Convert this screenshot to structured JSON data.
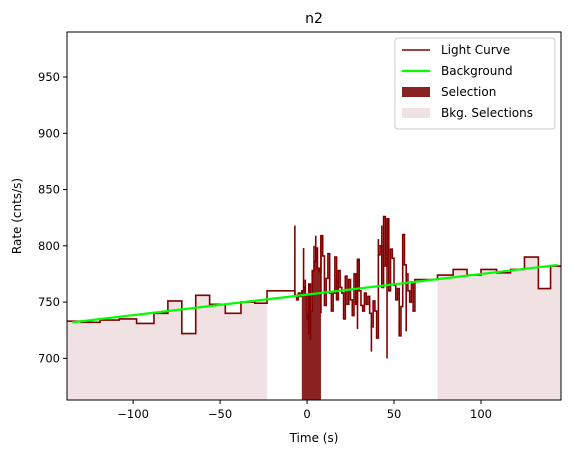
{
  "chart_data": {
    "type": "line",
    "title": "n2",
    "xlabel": "Time (s)",
    "ylabel": "Rate (cnts/s)",
    "xlim": [
      -138,
      146
    ],
    "ylim": [
      663,
      990
    ],
    "x_ticks": [
      -100,
      -50,
      0,
      50,
      100
    ],
    "x_tick_labels": [
      "−100",
      "−50",
      "0",
      "50",
      "100"
    ],
    "y_ticks": [
      700,
      750,
      800,
      850,
      900,
      950
    ],
    "y_tick_labels": [
      "700",
      "750",
      "800",
      "850",
      "900",
      "950"
    ],
    "grid": false,
    "legend_position": "top-right",
    "legend": [
      {
        "label": "Light Curve",
        "kind": "line",
        "color": "#800000"
      },
      {
        "label": "Background",
        "kind": "line",
        "color": "#00ff00"
      },
      {
        "label": "Selection",
        "kind": "patch",
        "color": "#8b2222"
      },
      {
        "label": "Bkg. Selections",
        "kind": "patch",
        "color": "#f0e2e2"
      }
    ],
    "light_curve": {
      "name": "Light Curve",
      "color": "#800000",
      "steps": [
        [
          -138,
          733
        ],
        [
          -130,
          732
        ],
        [
          -119,
          734
        ],
        [
          -108,
          735
        ],
        [
          -98,
          731
        ],
        [
          -88,
          740
        ],
        [
          -80,
          751
        ],
        [
          -72,
          722
        ],
        [
          -64,
          756
        ],
        [
          -56,
          748
        ],
        [
          -47,
          740
        ],
        [
          -38,
          750
        ],
        [
          -30,
          749
        ],
        [
          -23,
          760
        ],
        [
          -8,
          760
        ],
        [
          -7,
          756
        ],
        [
          -6,
          752
        ],
        [
          -5,
          758
        ],
        [
          -4,
          755
        ],
        [
          -3,
          760
        ],
        [
          -2,
          763
        ],
        [
          -1,
          757
        ],
        [
          0,
          735
        ],
        [
          1,
          766
        ],
        [
          2,
          742
        ],
        [
          3,
          778
        ],
        [
          4,
          786
        ],
        [
          5,
          798
        ],
        [
          6,
          780
        ],
        [
          7,
          777
        ],
        [
          8,
          809
        ],
        [
          9,
          791
        ],
        [
          10,
          747
        ],
        [
          11,
          771
        ],
        [
          12,
          793
        ],
        [
          13,
          758
        ],
        [
          14,
          742
        ],
        [
          15,
          758
        ],
        [
          16,
          790
        ],
        [
          17,
          752
        ],
        [
          18,
          778
        ],
        [
          19,
          763
        ],
        [
          20,
          758
        ],
        [
          21,
          735
        ],
        [
          22,
          773
        ],
        [
          23,
          748
        ],
        [
          24,
          770
        ],
        [
          25,
          752
        ],
        [
          26,
          738
        ],
        [
          27,
          775
        ],
        [
          28,
          748
        ],
        [
          29,
          788
        ],
        [
          30,
          760
        ],
        [
          31,
          747
        ],
        [
          32,
          742
        ],
        [
          33,
          758
        ],
        [
          34,
          748
        ],
        [
          35,
          755
        ],
        [
          36,
          740
        ],
        [
          37,
          728
        ],
        [
          38,
          751
        ],
        [
          39,
          742
        ],
        [
          40,
          718
        ],
        [
          41,
          792
        ],
        [
          42,
          800
        ],
        [
          43,
          763
        ],
        [
          44,
          826
        ],
        [
          45,
          782
        ],
        [
          46,
          824
        ],
        [
          47,
          760
        ],
        [
          48,
          797
        ],
        [
          49,
          789
        ],
        [
          50,
          765
        ],
        [
          51,
          752
        ],
        [
          52,
          762
        ],
        [
          53,
          720
        ],
        [
          54,
          746
        ],
        [
          55,
          810
        ],
        [
          56,
          783
        ],
        [
          57,
          775
        ],
        [
          58,
          760
        ],
        [
          59,
          750
        ],
        [
          60,
          768
        ],
        [
          61,
          742
        ],
        [
          62,
          770
        ],
        [
          75,
          774
        ],
        [
          84,
          779
        ],
        [
          92,
          774
        ],
        [
          100,
          779
        ],
        [
          109,
          776
        ],
        [
          117,
          779
        ],
        [
          125,
          790
        ],
        [
          133,
          762
        ],
        [
          140,
          782
        ],
        [
          146,
          782
        ]
      ],
      "lead_in_step": [
        -8,
        760,
        -4,
        757
      ],
      "spikes": [
        [
          -7,
          818
        ],
        [
          -2,
          798
        ],
        [
          -1,
          770
        ],
        [
          0,
          740
        ],
        [
          1,
          721
        ],
        [
          2,
          716
        ],
        [
          3,
          770
        ],
        [
          4,
          800
        ],
        [
          5,
          809
        ],
        [
          8,
          740
        ],
        [
          17,
          770
        ],
        [
          29,
          726
        ],
        [
          37,
          706
        ],
        [
          41,
          806
        ],
        [
          43,
          818
        ],
        [
          46,
          700
        ],
        [
          53,
          733
        ],
        [
          55,
          809
        ],
        [
          57,
          724
        ]
      ]
    },
    "background": {
      "name": "Background",
      "color": "#00ff00",
      "x": [
        -135,
        144
      ],
      "y": [
        732,
        783
      ]
    },
    "selection": {
      "name": "Selection",
      "x": [
        -3,
        8
      ],
      "color": "#8b2222"
    },
    "bkg_selections": {
      "name": "Bkg. Selections",
      "ranges": [
        [
          -138,
          -23
        ],
        [
          75,
          146
        ]
      ],
      "color": "#f0e2e2"
    }
  }
}
